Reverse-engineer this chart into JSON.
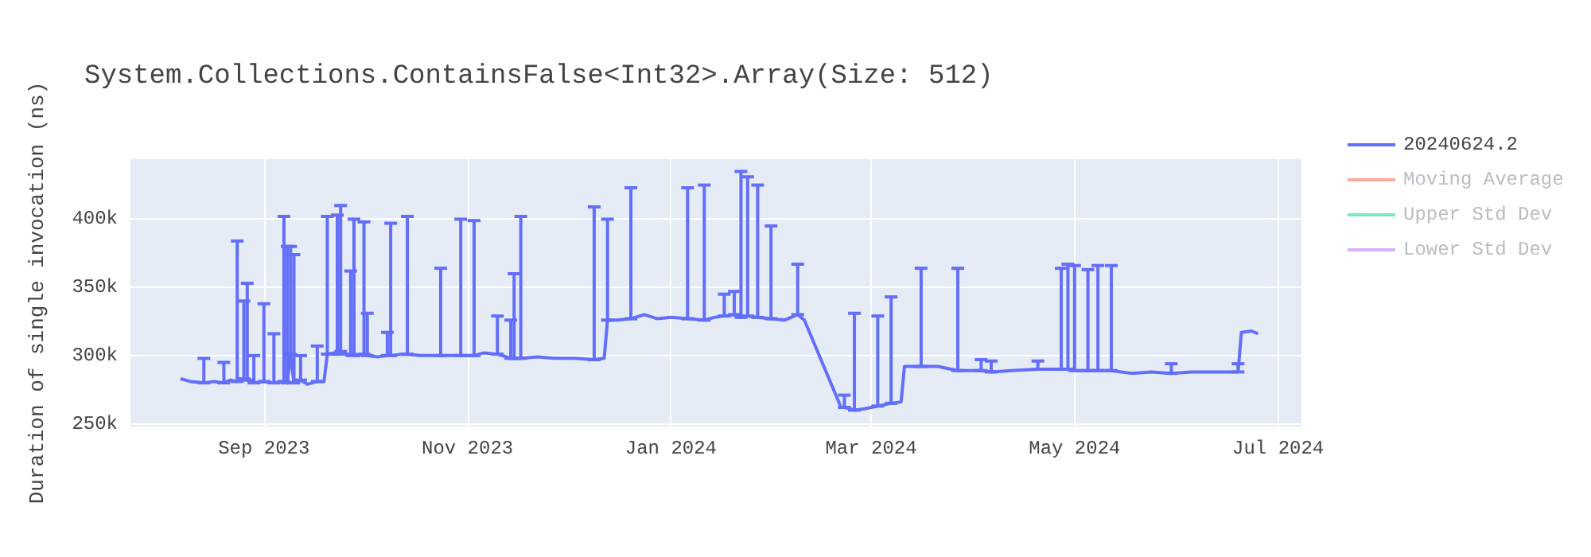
{
  "chart_data": {
    "type": "line",
    "title": "System.Collections.ContainsFalse<Int32>.Array(Size: 512)",
    "ylabel": "Duration of single invocation (ns)",
    "x": [
      "2023-08-07",
      "2023-08-10",
      "2023-08-14",
      "2023-08-17",
      "2023-08-20",
      "2023-08-22",
      "2023-08-24",
      "2023-08-26",
      "2023-08-27",
      "2023-08-29",
      "2023-09-01",
      "2023-09-04",
      "2023-09-07",
      "2023-09-08",
      "2023-09-09",
      "2023-09-10",
      "2023-09-12",
      "2023-09-14",
      "2023-09-17",
      "2023-09-19",
      "2023-09-20",
      "2023-09-22",
      "2023-09-23",
      "2023-09-24",
      "2023-09-26",
      "2023-09-27",
      "2023-09-28",
      "2023-10-01",
      "2023-10-02",
      "2023-10-05",
      "2023-10-08",
      "2023-10-09",
      "2023-10-12",
      "2023-10-14",
      "2023-10-18",
      "2023-10-24",
      "2023-10-27",
      "2023-10-30",
      "2023-11-03",
      "2023-11-06",
      "2023-11-10",
      "2023-11-14",
      "2023-11-15",
      "2023-11-17",
      "2023-11-22",
      "2023-11-27",
      "2023-12-03",
      "2023-12-09",
      "2023-12-12",
      "2023-12-13",
      "2023-12-16",
      "2023-12-20",
      "2023-12-24",
      "2023-12-28",
      "2024-01-01",
      "2024-01-06",
      "2024-01-11",
      "2024-01-14",
      "2024-01-17",
      "2024-01-20",
      "2024-01-22",
      "2024-01-24",
      "2024-01-27",
      "2024-01-31",
      "2024-02-04",
      "2024-02-08",
      "2024-02-10",
      "2024-02-21",
      "2024-02-22",
      "2024-02-25",
      "2024-02-28",
      "2024-03-03",
      "2024-03-07",
      "2024-03-10",
      "2024-03-11",
      "2024-03-16",
      "2024-03-21",
      "2024-03-27",
      "2024-04-03",
      "2024-04-06",
      "2024-04-12",
      "2024-04-20",
      "2024-04-27",
      "2024-04-29",
      "2024-05-01",
      "2024-05-05",
      "2024-05-08",
      "2024-05-12",
      "2024-05-18",
      "2024-05-24",
      "2024-05-30",
      "2024-06-05",
      "2024-06-12",
      "2024-06-19",
      "2024-06-20",
      "2024-06-23",
      "2024-06-25"
    ],
    "series": [
      {
        "name": "20240624.2",
        "color": "#636efa",
        "values": [
          283000,
          281000,
          280000,
          281000,
          280000,
          282000,
          281000,
          283000,
          282000,
          280000,
          281000,
          280000,
          281000,
          280000,
          301000,
          280000,
          282000,
          279000,
          281000,
          281000,
          301000,
          302000,
          301000,
          303000,
          300000,
          301000,
          300000,
          301000,
          300000,
          299000,
          300000,
          300000,
          301000,
          301000,
          300000,
          300000,
          300000,
          300000,
          300000,
          302000,
          301000,
          298000,
          298000,
          298000,
          299000,
          298000,
          298000,
          297000,
          298000,
          326000,
          326000,
          327000,
          330000,
          327000,
          328000,
          327000,
          326000,
          328000,
          329000,
          330000,
          328000,
          329000,
          328000,
          327000,
          326000,
          330000,
          326000,
          262000,
          262000,
          260000,
          261000,
          263000,
          265000,
          266000,
          292000,
          292000,
          292000,
          289000,
          289000,
          288000,
          289000,
          290000,
          290000,
          290000,
          289000,
          289000,
          289000,
          289000,
          287000,
          288000,
          287000,
          288000,
          288000,
          288000,
          317000,
          318000,
          316000
        ],
        "errors": [
          null,
          null,
          [
            280000,
            298000
          ],
          null,
          [
            280000,
            295000
          ],
          null,
          [
            281000,
            384000
          ],
          [
            283000,
            340000
          ],
          [
            282000,
            353000
          ],
          [
            280000,
            300000
          ],
          [
            281000,
            338000
          ],
          [
            280000,
            316000
          ],
          [
            281000,
            402000
          ],
          [
            280000,
            380000
          ],
          [
            301000,
            380000
          ],
          [
            280000,
            374000
          ],
          [
            282000,
            300000
          ],
          null,
          [
            281000,
            307000
          ],
          null,
          [
            301000,
            402000
          ],
          null,
          [
            301000,
            403000
          ],
          [
            303000,
            410000
          ],
          null,
          [
            301000,
            362000
          ],
          [
            300000,
            400000
          ],
          [
            301000,
            398000
          ],
          [
            300000,
            331000
          ],
          null,
          [
            300000,
            317000
          ],
          [
            300000,
            397000
          ],
          null,
          [
            301000,
            402000
          ],
          null,
          [
            300000,
            364000
          ],
          null,
          [
            300000,
            400000
          ],
          [
            300000,
            399000
          ],
          null,
          [
            301000,
            329000
          ],
          [
            298000,
            326000
          ],
          [
            298000,
            360000
          ],
          [
            298000,
            402000
          ],
          null,
          null,
          null,
          [
            297000,
            409000
          ],
          null,
          [
            326000,
            400000
          ],
          null,
          [
            327000,
            423000
          ],
          null,
          null,
          null,
          [
            327000,
            423000
          ],
          [
            326000,
            425000
          ],
          null,
          [
            329000,
            345000
          ],
          [
            330000,
            347000
          ],
          [
            328000,
            435000
          ],
          [
            329000,
            431000
          ],
          [
            328000,
            425000
          ],
          [
            327000,
            395000
          ],
          null,
          [
            330000,
            367000
          ],
          null,
          null,
          [
            262000,
            271000
          ],
          [
            260000,
            331000
          ],
          null,
          [
            263000,
            329000
          ],
          [
            265000,
            343000
          ],
          null,
          null,
          [
            292000,
            364000
          ],
          null,
          [
            289000,
            364000
          ],
          [
            289000,
            297000
          ],
          [
            288000,
            296000
          ],
          null,
          [
            290000,
            296000
          ],
          [
            290000,
            364000
          ],
          [
            290000,
            367000
          ],
          [
            289000,
            366000
          ],
          [
            289000,
            363000
          ],
          [
            289000,
            366000
          ],
          [
            289000,
            366000
          ],
          null,
          null,
          [
            287000,
            294000
          ],
          null,
          null,
          [
            288000,
            294000
          ],
          null,
          null,
          null
        ]
      },
      {
        "name": "Moving Average",
        "color": "#ef553b",
        "values": [
          null,
          null,
          null,
          null,
          null,
          null,
          null,
          null,
          null,
          null,
          null,
          null,
          null,
          null,
          null,
          null,
          null,
          null,
          null,
          null,
          null,
          null,
          null,
          null,
          null,
          null,
          null,
          null,
          null,
          null,
          null,
          null,
          null,
          null,
          null,
          null,
          null,
          null,
          null,
          null,
          null,
          null,
          null,
          null,
          null,
          null,
          null,
          null,
          null,
          null,
          null,
          null,
          null,
          null,
          null,
          null,
          null,
          null,
          null,
          null,
          null,
          null,
          null,
          null,
          null,
          null,
          null,
          null,
          null,
          null,
          null,
          null,
          null,
          null,
          null,
          null,
          null,
          null,
          null,
          null,
          null,
          null,
          null,
          null,
          null,
          null,
          null,
          null,
          null,
          null,
          null,
          null,
          null,
          null,
          null,
          null,
          null
        ]
      },
      {
        "name": "Upper Std Dev",
        "color": "#00cc96",
        "values": [
          null,
          null,
          null,
          null,
          null,
          null,
          null,
          null,
          null,
          null,
          null,
          null,
          null,
          null,
          null,
          null,
          null,
          null,
          null,
          null,
          null,
          null,
          null,
          null,
          null,
          null,
          null,
          null,
          null,
          null,
          null,
          null,
          null,
          null,
          null,
          null,
          null,
          null,
          null,
          null,
          null,
          null,
          null,
          null,
          null,
          null,
          null,
          null,
          null,
          null,
          null,
          null,
          null,
          null,
          null,
          null,
          null,
          null,
          null,
          null,
          null,
          null,
          null,
          null,
          null,
          null,
          null,
          null,
          null,
          null,
          null,
          null,
          null,
          null,
          null,
          null,
          null,
          null,
          null,
          null,
          null,
          null,
          null,
          null,
          null,
          null,
          null,
          null,
          null,
          null,
          null,
          null,
          null,
          null,
          null,
          null,
          null
        ]
      },
      {
        "name": "Lower Std Dev",
        "color": "#ab63fa",
        "values": [
          null,
          null,
          null,
          null,
          null,
          null,
          null,
          null,
          null,
          null,
          null,
          null,
          null,
          null,
          null,
          null,
          null,
          null,
          null,
          null,
          null,
          null,
          null,
          null,
          null,
          null,
          null,
          null,
          null,
          null,
          null,
          null,
          null,
          null,
          null,
          null,
          null,
          null,
          null,
          null,
          null,
          null,
          null,
          null,
          null,
          null,
          null,
          null,
          null,
          null,
          null,
          null,
          null,
          null,
          null,
          null,
          null,
          null,
          null,
          null,
          null,
          null,
          null,
          null,
          null,
          null,
          null,
          null,
          null,
          null,
          null,
          null,
          null,
          null,
          null,
          null,
          null,
          null,
          null,
          null,
          null,
          null,
          null,
          null,
          null,
          null,
          null,
          null,
          null,
          null,
          null,
          null,
          null,
          null,
          null,
          null,
          null
        ]
      }
    ],
    "xlim": [
      "2023-07-23",
      "2024-07-08"
    ],
    "xticks": [
      {
        "value": "2023-09-01",
        "label": "Sep 2023"
      },
      {
        "value": "2023-11-01",
        "label": "Nov 2023"
      },
      {
        "value": "2024-01-01",
        "label": "Jan 2024"
      },
      {
        "value": "2024-03-01",
        "label": "Mar 2024"
      },
      {
        "value": "2024-05-01",
        "label": "May 2024"
      },
      {
        "value": "2024-07-01",
        "label": "Jul 2024"
      }
    ],
    "ylim": [
      248000,
      444000
    ],
    "yticks": [
      {
        "value": 250000,
        "label": "250k"
      },
      {
        "value": 300000,
        "label": "300k"
      },
      {
        "value": 350000,
        "label": "350k"
      },
      {
        "value": 400000,
        "label": "400k"
      }
    ],
    "grid": true,
    "legend": "top right",
    "marker": "none",
    "line_style": "solid"
  }
}
